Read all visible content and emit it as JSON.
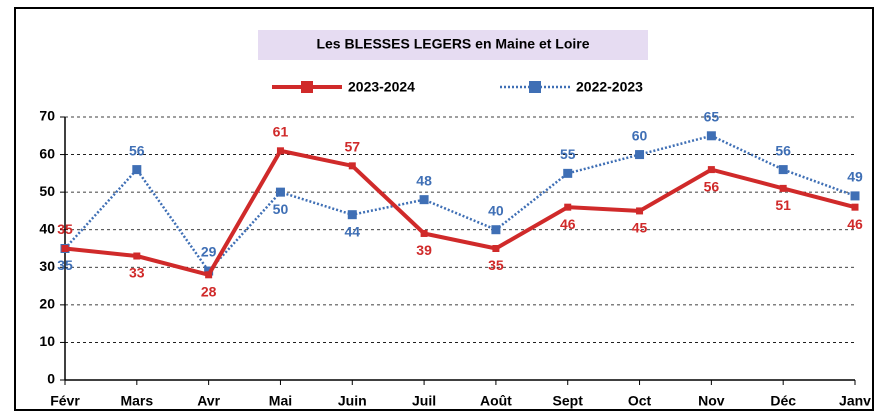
{
  "chart_data": {
    "type": "line",
    "title": "Les BLESSES LEGERS en Maine et Loire",
    "categories": [
      "Févr",
      "Mars",
      "Avr",
      "Mai",
      "Juin",
      "Juil",
      "Août",
      "Sept",
      "Oct",
      "Nov",
      "Déc",
      "Janv"
    ],
    "series": [
      {
        "name": "2023-2024",
        "color": "#d02a2a",
        "style": "solid",
        "values": [
          35,
          33,
          28,
          61,
          57,
          39,
          35,
          46,
          45,
          56,
          51,
          46
        ]
      },
      {
        "name": "2022-2023",
        "color": "#3f6fb5",
        "style": "dotted",
        "values": [
          35,
          56,
          29,
          50,
          44,
          48,
          40,
          55,
          60,
          65,
          56,
          49
        ]
      }
    ],
    "ylim": [
      0,
      70
    ],
    "yticks": [
      0,
      10,
      20,
      30,
      40,
      50,
      60,
      70
    ],
    "grid": true
  }
}
